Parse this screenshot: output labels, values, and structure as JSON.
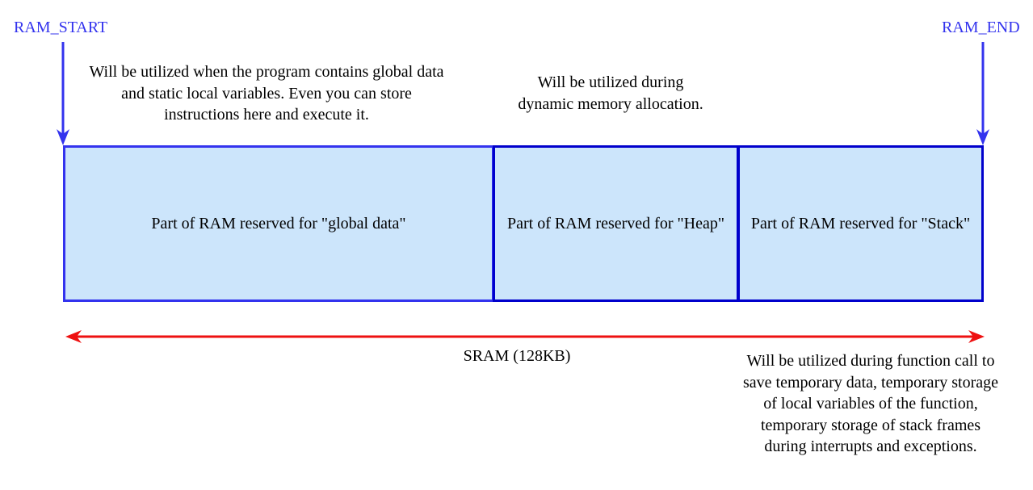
{
  "colors": {
    "marker": "#3333ee",
    "block_fill": "#cce5fb",
    "block_border_global": "#3333ee",
    "block_border": "#0000cc",
    "span_arrow": "#ee1111",
    "text": "#000000"
  },
  "markers": {
    "start": {
      "label": "RAM_START"
    },
    "end": {
      "label": "RAM_END"
    }
  },
  "notes": {
    "global": "Will be utilized when the program contains global data and static local variables. Even you can store instructions here and execute it.",
    "heap_line1": "Will be utilized during",
    "heap_line2": "dynamic memory allocation.",
    "stack": "Will be utilized during function call to save temporary data, temporary storage of local variables of the function, temporary storage of stack frames during interrupts and exceptions."
  },
  "blocks": [
    {
      "id": "global",
      "label": "Part of RAM reserved for \"global data\""
    },
    {
      "id": "heap",
      "label": "Part of RAM reserved for \"Heap\""
    },
    {
      "id": "stack",
      "label": "Part of RAM reserved for \"Stack\""
    }
  ],
  "span": {
    "label": "SRAM (128KB)"
  }
}
